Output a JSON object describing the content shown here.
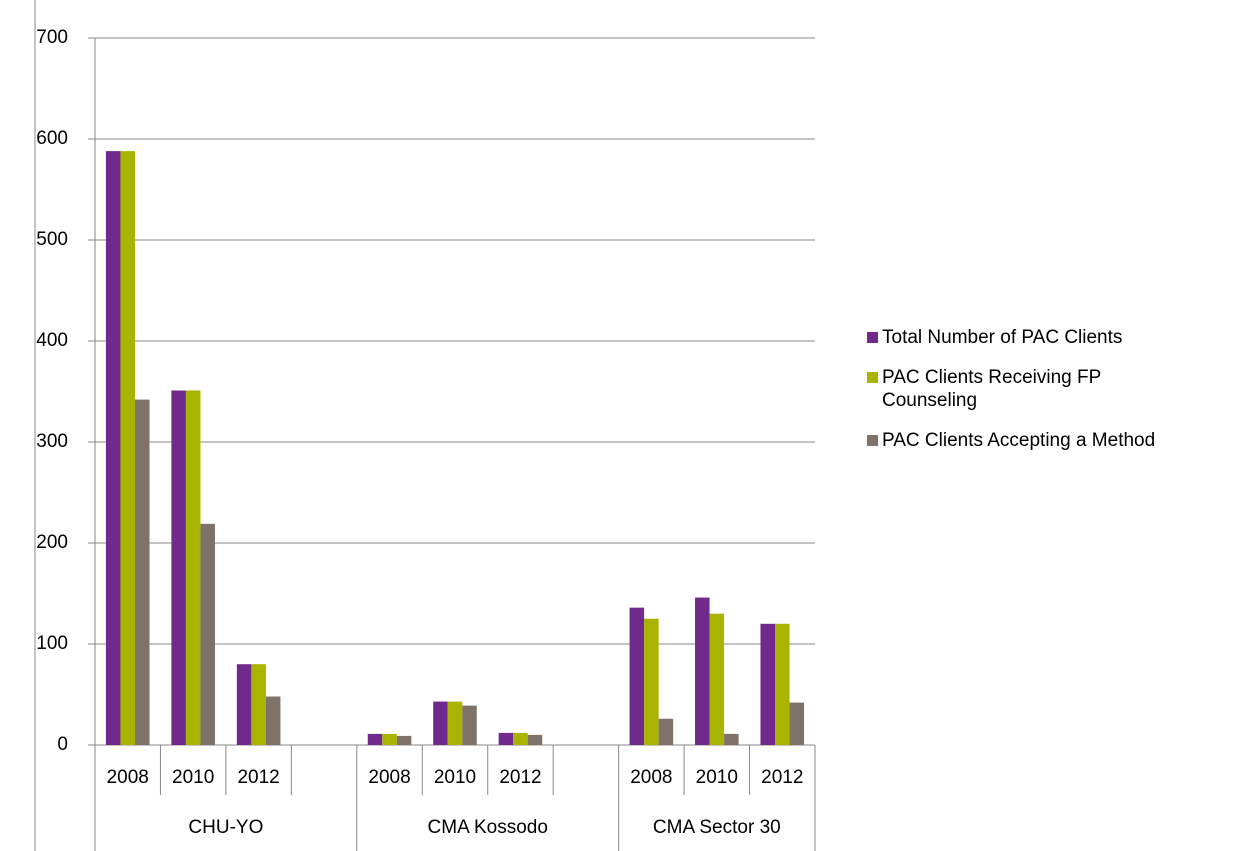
{
  "chart_data": {
    "type": "bar",
    "categories": [
      "2008",
      "2010",
      "2012",
      null,
      "2008",
      "2010",
      "2012",
      null,
      "2008",
      "2010",
      "2012"
    ],
    "groups": [
      "CHU-YO",
      "CMA Kossodo",
      "CMA Sector 30"
    ],
    "series": [
      {
        "name": "Total Number of PAC Clients",
        "color": "#6f2a8c",
        "values": [
          588,
          351,
          80,
          null,
          11,
          43,
          12,
          null,
          136,
          146,
          120
        ]
      },
      {
        "name": "PAC Clients Receiving FP Counseling",
        "color": "#a8b400",
        "values": [
          588,
          351,
          80,
          null,
          11,
          43,
          12,
          null,
          125,
          130,
          120
        ]
      },
      {
        "name": "PAC Clients Accepting a Method",
        "color": "#7f7369",
        "values": [
          342,
          219,
          48,
          null,
          9,
          39,
          10,
          null,
          26,
          11,
          42
        ]
      }
    ],
    "ylim": [
      0,
      700
    ],
    "yticks": [
      0,
      100,
      200,
      300,
      400,
      500,
      600,
      700
    ],
    "grid": true,
    "legend": "right"
  }
}
